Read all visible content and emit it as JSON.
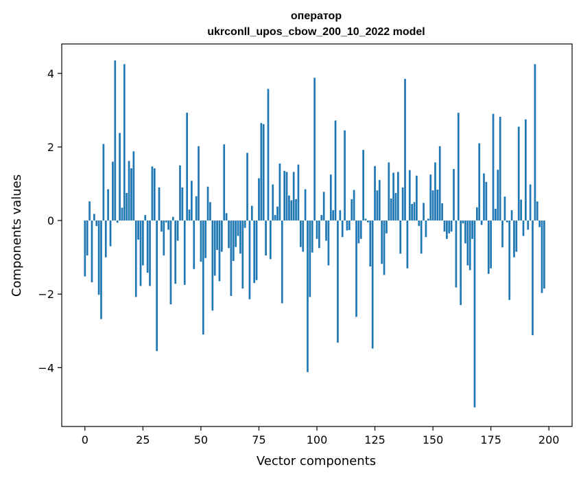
{
  "chart_data": {
    "type": "bar",
    "title": "оператор",
    "subtitle": "ukrconll_upos_cbow_200_10_2022 model",
    "xlabel": "Vector components",
    "ylabel": "Components values",
    "xlim": [
      -10,
      210
    ],
    "ylim": [
      -5.6,
      4.8
    ],
    "x_ticks": [
      0,
      25,
      50,
      75,
      100,
      125,
      150,
      175,
      200
    ],
    "y_ticks": [
      -4,
      -2,
      0,
      2,
      4
    ],
    "y_tick_labels": [
      "−4",
      "−2",
      "0",
      "2",
      "4"
    ],
    "grid": false,
    "bar_color": "#1f77b4",
    "values": [
      -1.52,
      -0.95,
      0.52,
      -1.68,
      0.18,
      -0.15,
      -2.02,
      -2.68,
      2.08,
      -1.0,
      0.85,
      -0.7,
      1.6,
      4.35,
      -0.06,
      2.38,
      0.35,
      4.25,
      0.75,
      1.62,
      1.42,
      1.88,
      -2.08,
      -0.52,
      -1.78,
      -1.22,
      0.15,
      -1.42,
      -1.78,
      1.47,
      1.42,
      -3.55,
      0.9,
      -0.3,
      -0.95,
      -0.05,
      -0.25,
      -2.28,
      0.1,
      -1.72,
      -0.55,
      1.5,
      0.9,
      -1.75,
      2.93,
      0.3,
      1.08,
      -1.32,
      0.66,
      2.02,
      -1.12,
      -3.1,
      -1.02,
      0.92,
      0.5,
      -2.45,
      -1.5,
      -0.8,
      -1.65,
      -0.85,
      2.07,
      0.2,
      -0.75,
      -2.05,
      -1.1,
      -0.72,
      -0.42,
      -0.9,
      -1.85,
      -0.2,
      1.84,
      -2.14,
      0.4,
      -1.7,
      -1.62,
      1.15,
      2.65,
      2.62,
      -0.95,
      3.58,
      -1.05,
      0.98,
      0.15,
      0.38,
      1.55,
      -2.25,
      1.35,
      1.32,
      0.68,
      0.55,
      1.32,
      0.58,
      1.52,
      -0.72,
      -0.85,
      0.85,
      -4.12,
      -2.08,
      -0.87,
      3.88,
      -0.5,
      -0.75,
      0.15,
      0.78,
      -0.55,
      -1.22,
      1.25,
      0.28,
      2.72,
      -3.32,
      0.28,
      -0.45,
      2.45,
      -0.27,
      -0.26,
      0.58,
      0.83,
      -2.62,
      -0.62,
      -0.5,
      1.92,
      0.05,
      -0.05,
      -1.25,
      -3.48,
      1.48,
      0.82,
      1.1,
      -1.18,
      -1.48,
      -0.35,
      1.58,
      0.6,
      1.3,
      0.75,
      1.32,
      -0.9,
      0.9,
      3.85,
      -1.3,
      1.37,
      0.45,
      0.5,
      1.22,
      -0.15,
      -0.9,
      0.48,
      -0.45,
      0.05,
      1.25,
      0.82,
      1.58,
      0.84,
      2.02,
      0.47,
      -0.3,
      -0.5,
      -0.35,
      -0.3,
      1.4,
      -1.82,
      2.93,
      -2.3,
      -0.08,
      -0.62,
      -1.22,
      -1.35,
      -0.5,
      -5.08,
      0.36,
      2.1,
      -0.12,
      1.28,
      1.05,
      -1.45,
      -1.3,
      2.9,
      0.32,
      1.38,
      2.82,
      -0.73,
      0.65,
      -0.05,
      -2.16,
      0.28,
      -1.0,
      -0.85,
      2.55,
      0.57,
      -0.42,
      2.75,
      -0.25,
      0.98,
      -3.12,
      4.25,
      0.52,
      -0.18,
      -1.97,
      -1.85
    ]
  }
}
